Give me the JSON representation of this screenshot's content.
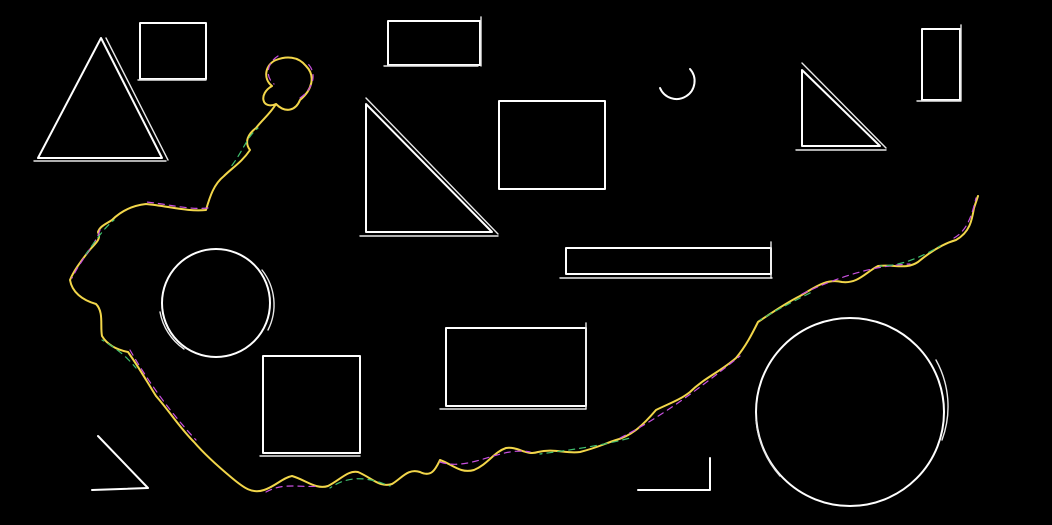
{
  "canvas": {
    "background": "#000000",
    "stroke_color": "#ffffff",
    "curve_colors": [
      "#f2d64a",
      "#c850e0",
      "#3fbf6f",
      "#ff8a3d"
    ]
  },
  "shapes": [
    {
      "name": "triangle-outline",
      "kind": "triangle"
    },
    {
      "name": "rectangle-outline",
      "kind": "rectangle"
    },
    {
      "name": "rectangle-outline",
      "kind": "rectangle"
    },
    {
      "name": "arc-outline",
      "kind": "arc"
    },
    {
      "name": "rectangle-outline",
      "kind": "rectangle"
    },
    {
      "name": "right-triangle-outline",
      "kind": "triangle"
    },
    {
      "name": "right-triangle-outline",
      "kind": "triangle"
    },
    {
      "name": "rectangle-outline",
      "kind": "rectangle"
    },
    {
      "name": "rectangle-outline",
      "kind": "rectangle"
    },
    {
      "name": "circle-outline",
      "kind": "circle"
    },
    {
      "name": "square-outline",
      "kind": "rectangle"
    },
    {
      "name": "rectangle-outline",
      "kind": "rectangle"
    },
    {
      "name": "circle-outline",
      "kind": "circle"
    },
    {
      "name": "corner-outline",
      "kind": "corner"
    },
    {
      "name": "corner-outline",
      "kind": "corner"
    },
    {
      "name": "freehand-curve",
      "kind": "curve"
    }
  ]
}
